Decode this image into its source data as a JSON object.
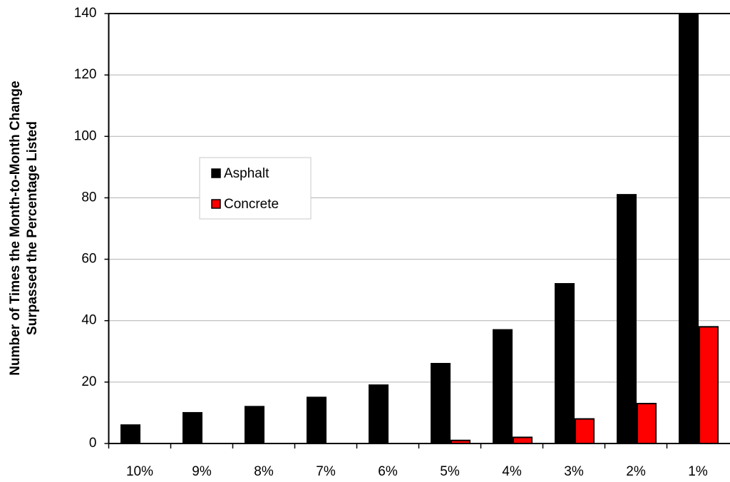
{
  "chart_data": {
    "type": "bar",
    "ylabel": [
      "Number of Times the Month-to-Month Change",
      "Surpassed the Percentage Listed"
    ],
    "categories": [
      "10%",
      "9%",
      "8%",
      "7%",
      "6%",
      "5%",
      "4%",
      "3%",
      "2%",
      "1%"
    ],
    "series": [
      {
        "name": "Asphalt",
        "color": "#000000",
        "values": [
          6,
          10,
          12,
          15,
          19,
          26,
          37,
          52,
          81,
          140
        ]
      },
      {
        "name": "Concrete",
        "color": "#ff0000",
        "values": [
          0,
          0,
          0,
          0,
          0,
          1,
          2,
          8,
          13,
          38
        ]
      }
    ],
    "ylim": [
      0,
      140
    ],
    "yticks": [
      0,
      20,
      40,
      60,
      80,
      100,
      120,
      140
    ],
    "grid": true
  }
}
